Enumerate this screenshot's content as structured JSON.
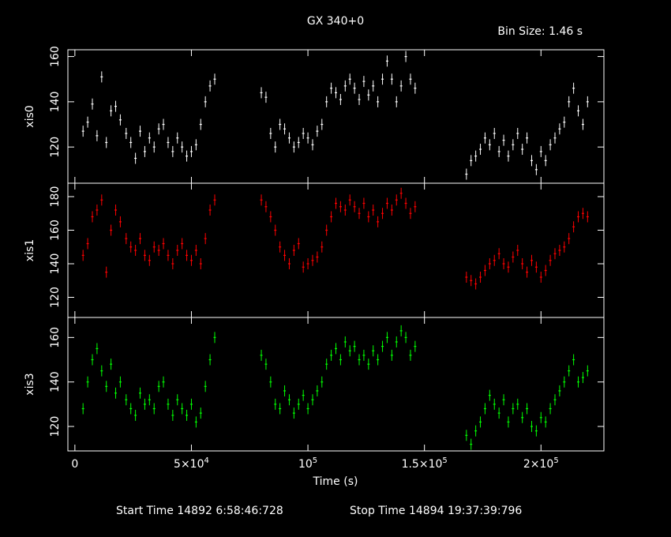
{
  "title": "GX 340+0",
  "bin_size_label": "Bin Size: 1.46  s",
  "footer": {
    "start_label": "Start Time 14892  6:58:46:728",
    "stop_label": "Stop Time 14894 19:37:39:796"
  },
  "chart_data": [
    {
      "type": "scatter",
      "series": [
        {
          "name": "xis0",
          "color": "#ffffff"
        }
      ],
      "ylabel": "xis0",
      "ylim": [
        104,
        163
      ],
      "yticks": [
        120,
        140,
        160
      ],
      "xlim": [
        -3000,
        227000
      ],
      "x": [
        3500,
        5500,
        7500,
        9500,
        11500,
        13500,
        15500,
        17500,
        19500,
        22000,
        24000,
        26000,
        28000,
        30000,
        32000,
        34000,
        36000,
        38000,
        40000,
        42000,
        44000,
        46000,
        48000,
        50000,
        52000,
        54000,
        56000,
        58000,
        60000,
        80000,
        82000,
        84000,
        86000,
        88000,
        90000,
        92000,
        94000,
        96000,
        98000,
        100000,
        102000,
        104000,
        106000,
        108000,
        110000,
        112000,
        114000,
        116000,
        118000,
        120000,
        122000,
        124000,
        126000,
        128000,
        130000,
        132000,
        134000,
        136000,
        138000,
        140000,
        142000,
        144000,
        146000,
        168000,
        170000,
        172000,
        174000,
        176000,
        178000,
        180000,
        182000,
        184000,
        186000,
        188000,
        190000,
        192000,
        194000,
        196000,
        198000,
        200000,
        202000,
        204000,
        206000,
        208000,
        210000,
        212000,
        214000,
        216000,
        218000,
        220000
      ],
      "y": [
        127,
        131,
        139,
        125,
        151,
        122,
        136,
        138,
        132,
        126,
        122,
        115,
        127,
        118,
        124,
        120,
        128,
        130,
        122,
        118,
        124,
        120,
        116,
        118,
        121,
        130,
        140,
        147,
        150,
        144,
        142,
        126,
        120,
        130,
        128,
        124,
        120,
        122,
        126,
        124,
        121,
        127,
        130,
        140,
        146,
        144,
        141,
        147,
        150,
        146,
        141,
        149,
        143,
        147,
        140,
        150,
        158,
        150,
        140,
        147,
        160,
        150,
        146,
        108,
        114,
        116,
        119,
        124,
        121,
        126,
        118,
        123,
        116,
        121,
        126,
        119,
        124,
        114,
        110,
        118,
        114,
        121,
        124,
        128,
        131,
        140,
        146,
        136,
        130,
        140
      ]
    },
    {
      "type": "scatter",
      "series": [
        {
          "name": "xis1",
          "color": "#ff0000"
        }
      ],
      "ylabel": "xis1",
      "ylim": [
        108,
        188
      ],
      "yticks": [
        120,
        140,
        160,
        180
      ],
      "xlim": [
        -3000,
        227000
      ],
      "x": [
        3500,
        5500,
        7500,
        9500,
        11500,
        13500,
        15500,
        17500,
        19500,
        22000,
        24000,
        26000,
        28000,
        30000,
        32000,
        34000,
        36000,
        38000,
        40000,
        42000,
        44000,
        46000,
        48000,
        50000,
        52000,
        54000,
        56000,
        58000,
        60000,
        80000,
        82000,
        84000,
        86000,
        88000,
        90000,
        92000,
        94000,
        96000,
        98000,
        100000,
        102000,
        104000,
        106000,
        108000,
        110000,
        112000,
        114000,
        116000,
        118000,
        120000,
        122000,
        124000,
        126000,
        128000,
        130000,
        132000,
        134000,
        136000,
        138000,
        140000,
        142000,
        144000,
        146000,
        168000,
        170000,
        172000,
        174000,
        176000,
        178000,
        180000,
        182000,
        184000,
        186000,
        188000,
        190000,
        192000,
        194000,
        196000,
        198000,
        200000,
        202000,
        204000,
        206000,
        208000,
        210000,
        212000,
        214000,
        216000,
        218000,
        220000
      ],
      "y": [
        145,
        152,
        168,
        172,
        178,
        135,
        160,
        172,
        165,
        155,
        150,
        148,
        155,
        145,
        142,
        150,
        148,
        152,
        145,
        140,
        148,
        152,
        145,
        142,
        148,
        140,
        155,
        172,
        178,
        178,
        174,
        168,
        160,
        150,
        145,
        140,
        148,
        152,
        138,
        140,
        142,
        144,
        150,
        160,
        168,
        176,
        174,
        172,
        178,
        174,
        170,
        176,
        168,
        172,
        165,
        170,
        176,
        172,
        178,
        182,
        176,
        170,
        174,
        132,
        130,
        128,
        132,
        136,
        140,
        142,
        146,
        140,
        138,
        144,
        148,
        140,
        135,
        142,
        138,
        132,
        136,
        142,
        146,
        148,
        150,
        155,
        162,
        168,
        170,
        168
      ]
    },
    {
      "type": "scatter",
      "series": [
        {
          "name": "xis3",
          "color": "#00ff00"
        }
      ],
      "ylabel": "xis3",
      "ylim": [
        109,
        169
      ],
      "yticks": [
        120,
        140,
        160
      ],
      "xlim": [
        -3000,
        227000
      ],
      "x": [
        3500,
        5500,
        7500,
        9500,
        11500,
        13500,
        15500,
        17500,
        19500,
        22000,
        24000,
        26000,
        28000,
        30000,
        32000,
        34000,
        36000,
        38000,
        40000,
        42000,
        44000,
        46000,
        48000,
        50000,
        52000,
        54000,
        56000,
        58000,
        60000,
        80000,
        82000,
        84000,
        86000,
        88000,
        90000,
        92000,
        94000,
        96000,
        98000,
        100000,
        102000,
        104000,
        106000,
        108000,
        110000,
        112000,
        114000,
        116000,
        118000,
        120000,
        122000,
        124000,
        126000,
        128000,
        130000,
        132000,
        134000,
        136000,
        138000,
        140000,
        142000,
        144000,
        146000,
        168000,
        170000,
        172000,
        174000,
        176000,
        178000,
        180000,
        182000,
        184000,
        186000,
        188000,
        190000,
        192000,
        194000,
        196000,
        198000,
        200000,
        202000,
        204000,
        206000,
        208000,
        210000,
        212000,
        214000,
        216000,
        218000,
        220000
      ],
      "y": [
        128,
        140,
        150,
        155,
        145,
        138,
        148,
        135,
        140,
        132,
        128,
        125,
        135,
        130,
        132,
        128,
        138,
        140,
        130,
        125,
        132,
        128,
        125,
        130,
        122,
        126,
        138,
        150,
        160,
        152,
        148,
        140,
        130,
        128,
        136,
        132,
        126,
        130,
        134,
        128,
        132,
        136,
        140,
        148,
        152,
        155,
        150,
        158,
        154,
        156,
        150,
        152,
        148,
        154,
        150,
        156,
        160,
        152,
        158,
        163,
        160,
        152,
        156,
        116,
        112,
        118,
        122,
        128,
        134,
        130,
        126,
        132,
        122,
        128,
        130,
        124,
        128,
        120,
        118,
        124,
        122,
        128,
        132,
        136,
        140,
        145,
        150,
        140,
        142,
        145
      ]
    }
  ],
  "x_axis": {
    "label": "Time (s)",
    "ticks": [
      {
        "value": 0,
        "base": "0",
        "exp": ""
      },
      {
        "value": 50000,
        "base": "5×10",
        "exp": "4"
      },
      {
        "value": 100000,
        "base": "10",
        "exp": "5"
      },
      {
        "value": 150000,
        "base": "1.5×10",
        "exp": "5"
      },
      {
        "value": 200000,
        "base": "2×10",
        "exp": "5"
      }
    ]
  }
}
